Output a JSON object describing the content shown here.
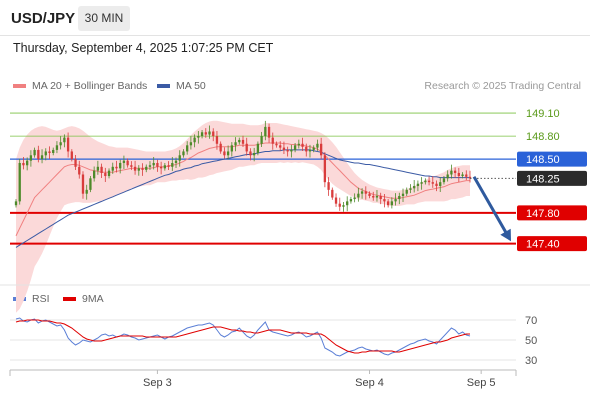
{
  "header": {
    "symbol": "USD/JPY",
    "timeframe": "30 MIN",
    "datetime": "Thursday, September 4, 2025 1:07:25 PM CET"
  },
  "legend": {
    "ma20": "MA 20 + Bollinger Bands",
    "ma50": "MA 50",
    "credit": "Research © 2025 Trading Central"
  },
  "rsi_legend": {
    "rsi": "RSI",
    "ma9": "9MA"
  },
  "colors": {
    "ma20": "#f08080",
    "band_fill": "#fbd9d9",
    "ma50": "#3b5ba5",
    "pivot": "#2a62d8",
    "support": "#e00000",
    "resistance": "#7ac142",
    "candle_up": "#4d8a2a",
    "candle_down": "#d93c3c",
    "arrow": "#2f5a9e",
    "price_tag": "#2b2b2b"
  },
  "chart_data": [
    {
      "type": "candlestick",
      "title": "USD/JPY",
      "ylim": [
        146.9,
        149.27
      ],
      "x_ticks": [
        {
          "label": "Sep 3",
          "index": 38
        },
        {
          "label": "Sep 4",
          "index": 95
        },
        {
          "label": "Sep 5",
          "index": 125
        }
      ],
      "levels": [
        {
          "label": "149.10",
          "value": 149.1,
          "kind": "resistance"
        },
        {
          "label": "148.80",
          "value": 148.8,
          "kind": "resistance"
        },
        {
          "label": "148.50",
          "value": 148.5,
          "kind": "pivot"
        },
        {
          "label": "147.80",
          "value": 147.8,
          "kind": "support"
        },
        {
          "label": "147.40",
          "value": 147.4,
          "kind": "support"
        }
      ],
      "last_price": {
        "label": "148.25",
        "value": 148.25
      },
      "forecast_arrow": {
        "from": 148.27,
        "to": 147.42,
        "direction": "down"
      },
      "close": [
        147.95,
        148.45,
        148.42,
        148.48,
        148.55,
        148.62,
        148.5,
        148.55,
        148.6,
        148.58,
        148.62,
        148.68,
        148.72,
        148.78,
        148.6,
        148.5,
        148.4,
        148.3,
        148.05,
        148.1,
        148.25,
        148.35,
        148.4,
        148.32,
        148.28,
        148.35,
        148.4,
        148.38,
        148.45,
        148.48,
        148.42,
        148.4,
        148.35,
        148.38,
        148.36,
        148.4,
        148.42,
        148.45,
        148.4,
        148.38,
        148.42,
        148.4,
        148.45,
        148.48,
        148.55,
        148.6,
        148.68,
        148.72,
        148.78,
        148.8,
        148.85,
        148.82,
        148.86,
        148.8,
        148.7,
        148.6,
        148.55,
        148.6,
        148.68,
        148.72,
        148.75,
        148.7,
        148.6,
        148.55,
        148.58,
        148.7,
        148.8,
        148.92,
        148.78,
        148.7,
        148.68,
        148.65,
        148.62,
        148.6,
        148.62,
        148.68,
        148.7,
        148.66,
        148.6,
        148.62,
        148.65,
        148.7,
        148.55,
        148.2,
        148.1,
        148.0,
        147.92,
        147.88,
        147.9,
        147.95,
        147.98,
        148.0,
        148.05,
        148.08,
        148.05,
        148.02,
        148.0,
        148.02,
        147.98,
        147.95,
        147.9,
        147.95,
        147.98,
        148.02,
        148.05,
        148.1,
        148.12,
        148.15,
        148.18,
        148.2,
        148.22,
        148.2,
        148.18,
        148.15,
        148.2,
        148.25,
        148.3,
        148.35,
        148.32,
        148.28,
        148.3,
        148.27,
        148.25
      ],
      "ma20": [
        147.5,
        147.6,
        147.7,
        147.8,
        147.9,
        148.0,
        148.05,
        148.1,
        148.15,
        148.2,
        148.25,
        148.3,
        148.35,
        148.4,
        148.42,
        148.43,
        148.43,
        148.42,
        148.4,
        148.38,
        148.36,
        148.35,
        148.34,
        148.33,
        148.33,
        148.33,
        148.33,
        148.34,
        148.35,
        148.36,
        148.37,
        148.38,
        148.38,
        148.38,
        148.38,
        148.38,
        148.38,
        148.39,
        148.4,
        148.4,
        148.4,
        148.41,
        148.42,
        148.43,
        148.45,
        148.47,
        148.5,
        148.52,
        148.55,
        148.58,
        148.6,
        148.62,
        148.64,
        148.65,
        148.66,
        148.66,
        148.66,
        148.66,
        148.66,
        148.67,
        148.68,
        148.68,
        148.68,
        148.68,
        148.68,
        148.69,
        148.7,
        148.71,
        148.71,
        148.71,
        148.71,
        148.71,
        148.7,
        148.7,
        148.69,
        148.69,
        148.68,
        148.68,
        148.67,
        148.66,
        148.65,
        148.63,
        148.6,
        148.55,
        148.5,
        148.45,
        148.4,
        148.35,
        148.3,
        148.25,
        148.2,
        148.16,
        148.12,
        148.1,
        148.08,
        148.06,
        148.04,
        148.03,
        148.02,
        148.01,
        148.0,
        147.99,
        147.99,
        147.99,
        148.0,
        148.01,
        148.02,
        148.03,
        148.05,
        148.07,
        148.09,
        148.1,
        148.11,
        148.12,
        148.13,
        148.14,
        148.16,
        148.18,
        148.19,
        148.2,
        148.21,
        148.22,
        148.22
      ],
      "bb_upper": [
        148.5,
        148.65,
        148.75,
        148.82,
        148.87,
        148.9,
        148.92,
        148.93,
        148.92,
        148.9,
        148.88,
        148.87,
        148.88,
        148.9,
        148.92,
        148.93,
        148.92,
        148.9,
        148.87,
        148.83,
        148.79,
        148.76,
        148.73,
        148.71,
        148.69,
        148.67,
        148.66,
        148.65,
        148.65,
        148.65,
        148.65,
        148.64,
        148.63,
        148.62,
        148.61,
        148.6,
        148.6,
        148.6,
        148.6,
        148.6,
        148.6,
        148.61,
        148.62,
        148.64,
        148.67,
        148.71,
        148.76,
        148.81,
        148.86,
        148.9,
        148.94,
        148.97,
        148.99,
        149.0,
        149.0,
        148.99,
        148.98,
        148.97,
        148.96,
        148.96,
        148.96,
        148.96,
        148.95,
        148.94,
        148.94,
        148.94,
        148.95,
        148.97,
        148.97,
        148.97,
        148.97,
        148.96,
        148.95,
        148.94,
        148.93,
        148.92,
        148.91,
        148.9,
        148.89,
        148.88,
        148.87,
        148.86,
        148.84,
        148.81,
        148.77,
        148.72,
        148.66,
        148.59,
        148.52,
        148.45,
        148.38,
        148.32,
        148.27,
        148.23,
        148.2,
        148.17,
        148.15,
        148.13,
        148.12,
        148.11,
        148.1,
        148.09,
        148.09,
        148.09,
        148.1,
        148.11,
        148.13,
        148.15,
        148.17,
        148.2,
        148.23,
        148.25,
        148.27,
        148.29,
        148.31,
        148.33,
        148.36,
        148.38,
        148.4,
        148.41,
        148.42,
        148.42,
        148.42
      ],
      "bb_lower": [
        146.5,
        146.55,
        146.65,
        146.78,
        146.93,
        147.1,
        147.18,
        147.27,
        147.38,
        147.5,
        147.62,
        147.73,
        147.82,
        147.9,
        147.92,
        147.93,
        147.94,
        147.94,
        147.93,
        147.93,
        147.93,
        147.94,
        147.95,
        147.95,
        147.97,
        147.99,
        148.0,
        148.03,
        148.05,
        148.07,
        148.09,
        148.12,
        148.13,
        148.14,
        148.15,
        148.16,
        148.16,
        148.18,
        148.2,
        148.2,
        148.2,
        148.21,
        148.22,
        148.22,
        148.23,
        148.23,
        148.24,
        148.23,
        148.24,
        148.26,
        148.26,
        148.27,
        148.29,
        148.3,
        148.32,
        148.33,
        148.34,
        148.35,
        148.36,
        148.38,
        148.4,
        148.4,
        148.41,
        148.42,
        148.42,
        148.44,
        148.45,
        148.45,
        148.45,
        148.45,
        148.45,
        148.46,
        148.45,
        148.46,
        148.45,
        148.46,
        148.45,
        148.46,
        148.45,
        148.44,
        148.43,
        148.4,
        148.36,
        148.29,
        148.23,
        148.18,
        148.14,
        148.11,
        148.08,
        148.05,
        148.02,
        148.0,
        147.97,
        147.97,
        147.96,
        147.95,
        147.93,
        147.93,
        147.92,
        147.91,
        147.9,
        147.89,
        147.89,
        147.89,
        147.9,
        147.91,
        147.91,
        147.91,
        147.93,
        147.94,
        147.95,
        147.95,
        147.95,
        147.95,
        147.95,
        147.95,
        147.96,
        147.98,
        147.98,
        147.99,
        148.0,
        148.02,
        148.02
      ],
      "ma50": [
        147.35,
        147.38,
        147.41,
        147.44,
        147.47,
        147.5,
        147.53,
        147.56,
        147.59,
        147.62,
        147.65,
        147.68,
        147.71,
        147.74,
        147.77,
        147.79,
        147.81,
        147.83,
        147.85,
        147.87,
        147.89,
        147.91,
        147.93,
        147.95,
        147.97,
        147.99,
        148.01,
        148.03,
        148.05,
        148.07,
        148.09,
        148.11,
        148.13,
        148.15,
        148.17,
        148.19,
        148.21,
        148.23,
        148.25,
        148.27,
        148.29,
        148.3,
        148.32,
        148.34,
        148.35,
        148.37,
        148.38,
        148.39,
        148.41,
        148.42,
        148.44,
        148.45,
        148.46,
        148.47,
        148.48,
        148.49,
        148.5,
        148.51,
        148.52,
        148.53,
        148.54,
        148.55,
        148.56,
        148.56,
        148.57,
        148.58,
        148.59,
        148.6,
        148.6,
        148.61,
        148.61,
        148.61,
        148.62,
        148.62,
        148.62,
        148.62,
        148.62,
        148.62,
        148.62,
        148.62,
        148.61,
        148.6,
        148.59,
        148.57,
        148.55,
        148.53,
        148.51,
        148.49,
        148.48,
        148.47,
        148.46,
        148.45,
        148.45,
        148.44,
        148.43,
        148.43,
        148.42,
        148.41,
        148.4,
        148.39,
        148.38,
        148.37,
        148.36,
        148.35,
        148.34,
        148.33,
        148.32,
        148.31,
        148.3,
        148.29,
        148.28,
        148.28,
        148.27,
        148.27,
        148.26,
        148.26,
        148.26,
        148.26,
        148.26,
        148.26,
        148.26,
        148.26,
        148.26
      ]
    },
    {
      "type": "line",
      "title": "RSI",
      "ylim": [
        20,
        80
      ],
      "y_ticks": [
        {
          "label": "70",
          "value": 70
        },
        {
          "label": "50",
          "value": 50
        },
        {
          "label": "30",
          "value": 30
        }
      ],
      "series": [
        {
          "name": "RSI",
          "values": [
            71,
            72,
            69,
            68,
            70,
            71,
            67,
            69,
            70,
            68,
            66,
            64,
            65,
            60,
            52,
            48,
            45,
            47,
            50,
            49,
            48,
            50,
            52,
            55,
            56,
            54,
            55,
            53,
            54,
            56,
            55,
            53,
            52,
            50,
            51,
            52,
            53,
            54,
            55,
            53,
            51,
            53,
            54,
            56,
            58,
            60,
            62,
            63,
            64,
            65,
            65,
            66,
            67,
            65,
            60,
            55,
            53,
            55,
            58,
            59,
            62,
            58,
            54,
            52,
            55,
            60,
            64,
            68,
            60,
            58,
            57,
            56,
            55,
            54,
            55,
            57,
            58,
            56,
            53,
            54,
            56,
            58,
            52,
            42,
            40,
            38,
            35,
            34,
            36,
            38,
            39,
            40,
            42,
            43,
            41,
            40,
            39,
            40,
            38,
            36,
            35,
            37,
            38,
            40,
            42,
            44,
            46,
            47,
            49,
            50,
            51,
            49,
            48,
            46,
            50,
            54,
            58,
            62,
            60,
            56,
            58,
            55,
            54
          ]
        },
        {
          "name": "9MA",
          "values": [
            68,
            69,
            69,
            70,
            70,
            70,
            70,
            69,
            69,
            69,
            68,
            67,
            67,
            66,
            64,
            62,
            59,
            56,
            53,
            51,
            50,
            49,
            49,
            49,
            50,
            51,
            52,
            53,
            54,
            54,
            54,
            54,
            54,
            54,
            54,
            53,
            53,
            53,
            53,
            53,
            53,
            53,
            53,
            53,
            54,
            55,
            56,
            57,
            58,
            59,
            60,
            61,
            62,
            63,
            63,
            63,
            62,
            61,
            60,
            60,
            59,
            59,
            58,
            58,
            57,
            57,
            58,
            59,
            60,
            60,
            60,
            60,
            59,
            58,
            57,
            57,
            57,
            57,
            57,
            56,
            56,
            56,
            56,
            54,
            51,
            48,
            45,
            43,
            41,
            39,
            38,
            37,
            37,
            38,
            38,
            39,
            39,
            39,
            39,
            39,
            39,
            39,
            38,
            38,
            39,
            40,
            41,
            42,
            43,
            44,
            45,
            46,
            47,
            48,
            48,
            49,
            50,
            52,
            53,
            54,
            55,
            56,
            56
          ]
        }
      ]
    }
  ]
}
